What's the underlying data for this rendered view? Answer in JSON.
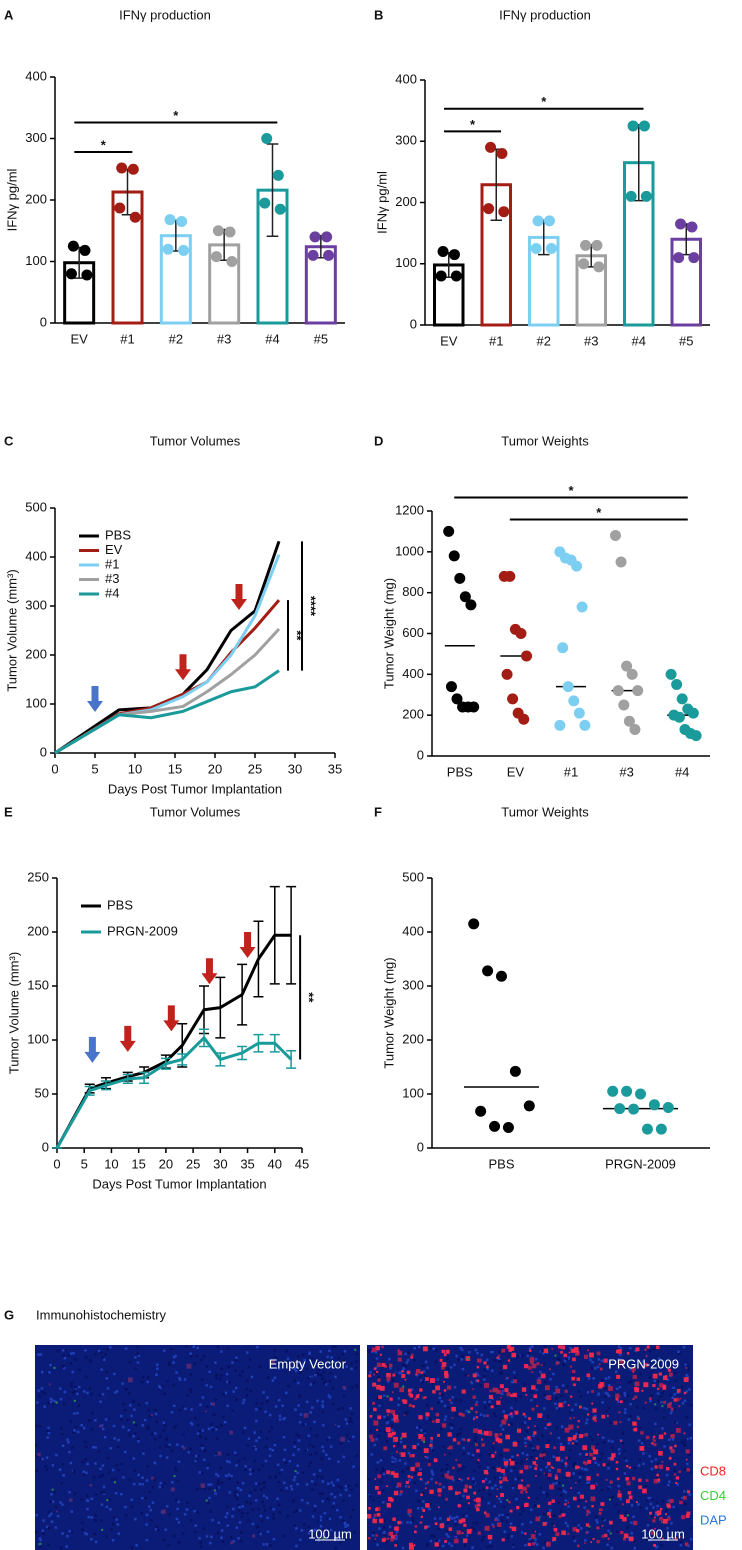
{
  "chart_data": [
    {
      "type": "bar",
      "panel": "A",
      "title": "IFNγ production",
      "ylabel": "IFNγ pg/ml",
      "categories": [
        "EV",
        "#1",
        "#2",
        "#3",
        "#4",
        "#5"
      ],
      "colors": [
        "#000000",
        "#a31d14",
        "#7dcff2",
        "#a0a0a0",
        "#1a9a9a",
        "#6b3fa0"
      ],
      "values": [
        98,
        213,
        142,
        127,
        216,
        124
      ],
      "errors": [
        25,
        37,
        25,
        25,
        75,
        18
      ],
      "points": [
        [
          125,
          118,
          80,
          78
        ],
        [
          252,
          250,
          187,
          172
        ],
        [
          168,
          165,
          120,
          118
        ],
        [
          150,
          148,
          108,
          100
        ],
        [
          300,
          240,
          195,
          185
        ],
        [
          140,
          140,
          110,
          110
        ]
      ],
      "ylim": [
        0,
        400
      ],
      "yticks": [
        0,
        100,
        200,
        300,
        400
      ],
      "comparisons": [
        {
          "label": "*",
          "between": [
            "EV",
            "#1"
          ]
        },
        {
          "label": "*",
          "between": [
            "EV",
            "#4"
          ]
        }
      ]
    },
    {
      "type": "bar",
      "panel": "B",
      "title": "IFNγ production",
      "ylabel": "IFNγ pg/ml",
      "categories": [
        "EV",
        "#1",
        "#2",
        "#3",
        "#4",
        "#5"
      ],
      "colors": [
        "#000000",
        "#a31d14",
        "#7dcff2",
        "#a0a0a0",
        "#1a9a9a",
        "#6b3fa0"
      ],
      "values": [
        98,
        229,
        143,
        113,
        265,
        140
      ],
      "errors": [
        20,
        58,
        28,
        18,
        62,
        25
      ],
      "points": [
        [
          120,
          115,
          80,
          80
        ],
        [
          290,
          280,
          190,
          185
        ],
        [
          170,
          170,
          125,
          125
        ],
        [
          130,
          130,
          100,
          95
        ],
        [
          325,
          325,
          210,
          210
        ],
        [
          165,
          160,
          110,
          110
        ]
      ],
      "ylim": [
        0,
        400
      ],
      "yticks": [
        0,
        100,
        200,
        300,
        400
      ],
      "comparisons": [
        {
          "label": "*",
          "between": [
            "EV",
            "#1"
          ]
        },
        {
          "label": "*",
          "between": [
            "EV",
            "#4"
          ]
        }
      ]
    },
    {
      "type": "line",
      "panel": "C",
      "title": "Tumor Volumes",
      "xlabel": "Days Post Tumor Implantation",
      "ylabel": "Tumor Volume (mm³)",
      "x": [
        0,
        8,
        12,
        16,
        19,
        22,
        25,
        28
      ],
      "series": [
        {
          "name": "PBS",
          "color": "#000000",
          "values": [
            0,
            88,
            92,
            120,
            170,
            250,
            290,
            432
          ]
        },
        {
          "name": "EV",
          "color": "#a31d14",
          "values": [
            0,
            80,
            92,
            120,
            145,
            205,
            255,
            312
          ]
        },
        {
          "name": "#1",
          "color": "#7dcff2",
          "values": [
            0,
            78,
            88,
            115,
            145,
            200,
            280,
            405
          ]
        },
        {
          "name": "#3",
          "color": "#a0a0a0",
          "values": [
            0,
            78,
            85,
            95,
            125,
            160,
            200,
            253
          ]
        },
        {
          "name": "#4",
          "color": "#1a9a9a",
          "values": [
            0,
            78,
            72,
            85,
            105,
            125,
            135,
            168
          ]
        }
      ],
      "xlim": [
        0,
        35
      ],
      "xticks": [
        0,
        5,
        10,
        15,
        20,
        25,
        30,
        35
      ],
      "ylim": [
        0,
        500
      ],
      "yticks": [
        0,
        100,
        200,
        300,
        400,
        500
      ],
      "legend": "upper left",
      "doses": [
        {
          "x": 5,
          "color": "#4a74c9"
        },
        {
          "x": 16,
          "color": "#c0231b"
        },
        {
          "x": 23,
          "color": "#c0231b"
        }
      ],
      "comparisons": [
        {
          "label": "**",
          "between": [
            "EV",
            "#4"
          ]
        },
        {
          "label": "****",
          "between": [
            "PBS",
            "#4"
          ]
        }
      ]
    },
    {
      "type": "dot",
      "panel": "D",
      "title": "Tumor Weights",
      "ylabel": "Tumor Weight (mg)",
      "categories": [
        "PBS",
        "EV",
        "#1",
        "#3",
        "#4"
      ],
      "colors": [
        "#000000",
        "#a31d14",
        "#7dcff2",
        "#a0a0a0",
        "#1a9a9a"
      ],
      "points": [
        [
          1100,
          980,
          870,
          780,
          740,
          340,
          280,
          240,
          240,
          240
        ],
        [
          880,
          880,
          620,
          600,
          490,
          400,
          280,
          210,
          180
        ],
        [
          1000,
          970,
          960,
          930,
          730,
          530,
          340,
          270,
          210,
          150,
          150
        ],
        [
          1080,
          950,
          440,
          400,
          320,
          320,
          250,
          170,
          130
        ],
        [
          400,
          350,
          280,
          230,
          210,
          200,
          190,
          130,
          110,
          100
        ]
      ],
      "medians": [
        540,
        490,
        340,
        320,
        200
      ],
      "ylim": [
        0,
        1200
      ],
      "yticks": [
        0,
        200,
        400,
        600,
        800,
        1000,
        1200
      ],
      "comparisons": [
        {
          "label": "*",
          "between": [
            "EV",
            "#4"
          ]
        },
        {
          "label": "*",
          "between": [
            "PBS",
            "#4"
          ]
        }
      ]
    },
    {
      "type": "line",
      "panel": "E",
      "title": "Tumor Volumes",
      "xlabel": "Days Post Tumor Implantation",
      "ylabel": "Tumor Volume (mm³)",
      "x": [
        0,
        6,
        9,
        13,
        16,
        20,
        23,
        27,
        30,
        34,
        37,
        40,
        43
      ],
      "series": [
        {
          "name": "PBS",
          "color": "#000000",
          "values": [
            0,
            55,
            60,
            66,
            70,
            80,
            95,
            128,
            130,
            142,
            175,
            197,
            197
          ],
          "errors": [
            0,
            4,
            5,
            4,
            5,
            6,
            20,
            22,
            28,
            28,
            35,
            45,
            45
          ]
        },
        {
          "name": "PRGN-2009",
          "color": "#1a9a9a",
          "values": [
            0,
            53,
            58,
            64,
            65,
            78,
            82,
            102,
            82,
            88,
            97,
            97,
            82
          ],
          "errors": [
            0,
            4,
            4,
            4,
            5,
            5,
            5,
            8,
            6,
            6,
            8,
            8,
            8
          ]
        }
      ],
      "xlim": [
        0,
        45
      ],
      "xticks": [
        0,
        5,
        10,
        15,
        20,
        25,
        30,
        35,
        40,
        45
      ],
      "ylim": [
        0,
        250
      ],
      "yticks": [
        0,
        50,
        100,
        150,
        200,
        250
      ],
      "legend": "upper left",
      "doses": [
        {
          "x": 6.5,
          "color": "#4a74c9"
        },
        {
          "x": 13,
          "color": "#c0231b"
        },
        {
          "x": 21,
          "color": "#c0231b"
        },
        {
          "x": 28,
          "color": "#c0231b"
        },
        {
          "x": 35,
          "color": "#c0231b"
        }
      ],
      "comparisons": [
        {
          "label": "**",
          "between": [
            "PBS",
            "PRGN-2009"
          ]
        }
      ]
    },
    {
      "type": "dot",
      "panel": "F",
      "title": "Tumor Weights",
      "ylabel": "Tumor Weight (mg)",
      "categories": [
        "PBS",
        "PRGN-2009"
      ],
      "colors": [
        "#000000",
        "#1a9a9a"
      ],
      "points": [
        [
          415,
          328,
          318,
          142,
          78,
          68,
          40,
          38
        ],
        [
          105,
          105,
          100,
          80,
          75,
          73,
          72,
          35,
          35
        ]
      ],
      "medians": [
        113,
        73
      ],
      "ylim": [
        0,
        500
      ],
      "yticks": [
        0,
        100,
        200,
        300,
        400,
        500
      ],
      "comparisons": []
    }
  ],
  "figure_g": {
    "panel": "G",
    "title": "Immunohistochemistry",
    "images": [
      {
        "label": "Empty Vector",
        "scale_bar": "100 µm"
      },
      {
        "label": "PRGN-2009",
        "scale_bar": "100 µm"
      }
    ],
    "stains": [
      {
        "name": "CD8",
        "color": "#ff2020"
      },
      {
        "name": "CD4",
        "color": "#33cc33"
      },
      {
        "name": "DAP",
        "color": "#2a78d8"
      }
    ]
  }
}
